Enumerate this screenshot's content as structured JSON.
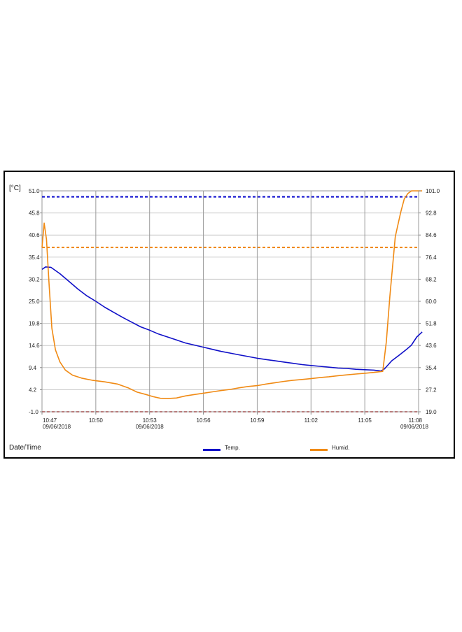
{
  "chart_data": {
    "type": "line",
    "left_unit": "[°C]",
    "xlabel": "Date/Time",
    "left_axis": {
      "range": [
        -1.0,
        51.0
      ],
      "ticks": [
        "51.0",
        "45.8",
        "40.6",
        "35.4",
        "30.2",
        "25.0",
        "19.8",
        "14.6",
        "9.4",
        "4.2",
        "-1.0"
      ]
    },
    "right_axis": {
      "range": [
        19.0,
        101.0
      ],
      "ticks": [
        "101.0",
        "92.8",
        "84.6",
        "76.4",
        "68.2",
        "60.0",
        "51.8",
        "43.6",
        "35.4",
        "27.2",
        "19.0"
      ]
    },
    "x_ticks": [
      {
        "time": "10:47",
        "date": "09/06/2018",
        "minutes": 0
      },
      {
        "time": "10:50",
        "date": "",
        "minutes": 3
      },
      {
        "time": "10:53",
        "date": "09/06/2018",
        "minutes": 6
      },
      {
        "time": "10:56",
        "date": "",
        "minutes": 9
      },
      {
        "time": "10:59",
        "date": "",
        "minutes": 12
      },
      {
        "time": "11:02",
        "date": "",
        "minutes": 15
      },
      {
        "time": "11:05",
        "date": "",
        "minutes": 18
      },
      {
        "time": "11:08",
        "date": "09/06/2018",
        "minutes": 21
      }
    ],
    "grid": true,
    "legend_position": "bottom",
    "colors": {
      "temp": "#1010c8",
      "humid": "#f08a14",
      "temp_limit": "#1a1ad0",
      "humid_limit": "#f08a14",
      "low_limit": "#a05050"
    },
    "limits": [
      {
        "series": "Temp.",
        "axis": "left",
        "value": 49.6
      },
      {
        "series": "Humid.",
        "axis": "right",
        "value": 80.0
      },
      {
        "series": "low",
        "axis": "left",
        "value": -1.0
      }
    ],
    "series": [
      {
        "name": "Temp.",
        "axis": "left",
        "x": [
          0,
          0.2,
          0.5,
          1.0,
          1.5,
          2.0,
          2.5,
          3.0,
          3.5,
          4.0,
          4.5,
          5.0,
          5.5,
          6.0,
          6.5,
          7.0,
          7.5,
          8.0,
          8.5,
          9.0,
          9.5,
          10.0,
          10.5,
          11.0,
          11.5,
          12.0,
          12.5,
          13.0,
          13.5,
          14.0,
          14.5,
          15.0,
          15.5,
          16.0,
          16.5,
          17.0,
          17.5,
          18.0,
          18.5,
          18.9,
          19.1,
          19.5,
          20.0,
          20.3,
          20.6,
          20.9,
          21.2
        ],
        "values": [
          32.5,
          33.1,
          33.0,
          31.5,
          29.7,
          27.9,
          26.3,
          25.0,
          23.6,
          22.4,
          21.2,
          20.1,
          19.0,
          18.2,
          17.3,
          16.6,
          15.9,
          15.2,
          14.7,
          14.2,
          13.7,
          13.2,
          12.8,
          12.4,
          12.0,
          11.6,
          11.3,
          11.0,
          10.7,
          10.4,
          10.1,
          9.9,
          9.7,
          9.5,
          9.3,
          9.2,
          9.0,
          8.9,
          8.8,
          8.6,
          9.1,
          11.0,
          12.6,
          13.6,
          14.7,
          16.6,
          17.8
        ]
      },
      {
        "name": "Humid.",
        "axis": "right",
        "x": [
          0,
          0.12,
          0.25,
          0.4,
          0.55,
          0.75,
          1.0,
          1.3,
          1.7,
          2.2,
          2.8,
          3.5,
          4.2,
          4.8,
          5.3,
          5.8,
          6.2,
          6.6,
          7.0,
          7.5,
          8.0,
          8.5,
          9.0,
          9.5,
          10.0,
          10.5,
          11.0,
          11.5,
          12.0,
          12.5,
          13.0,
          13.5,
          14.0,
          14.5,
          15.0,
          15.5,
          16.0,
          16.5,
          17.0,
          17.5,
          18.0,
          18.5,
          19.0,
          19.2,
          19.4,
          19.7,
          20.0,
          20.2,
          20.4,
          20.6,
          20.8,
          21.0,
          21.2
        ],
        "values": [
          80.0,
          89.0,
          83.0,
          66.0,
          50.0,
          42.0,
          37.5,
          34.5,
          32.6,
          31.5,
          30.7,
          30.1,
          29.3,
          27.9,
          26.3,
          25.4,
          24.6,
          24.0,
          23.9,
          24.1,
          24.9,
          25.4,
          25.9,
          26.4,
          26.9,
          27.3,
          27.9,
          28.4,
          28.7,
          29.3,
          29.8,
          30.3,
          30.7,
          31.0,
          31.3,
          31.7,
          32.0,
          32.4,
          32.7,
          33.0,
          33.3,
          33.6,
          34.0,
          45.0,
          62.0,
          84.0,
          93.0,
          98.0,
          100.0,
          101.0,
          101.0,
          101.0,
          101.0
        ]
      }
    ]
  }
}
